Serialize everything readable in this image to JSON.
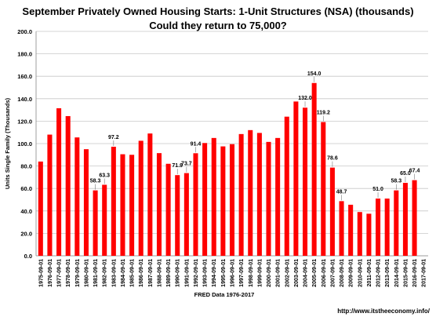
{
  "chart_data": {
    "type": "bar",
    "title": "September Privately Owned Housing Starts: 1-Unit Structures (NSA) (thousands)",
    "subtitle": "Could they return to 75,000?",
    "xlabel": "FRED  Data 1976-2017",
    "ylabel": "Units Single Family (Thousands)",
    "ylim": [
      0,
      200
    ],
    "yticks": [
      "0.0",
      "20.0",
      "40.0",
      "60.0",
      "80.0",
      "100.0",
      "120.0",
      "140.0",
      "160.0",
      "180.0",
      "200.0"
    ],
    "grid": true,
    "bar_color": "#ff0000",
    "categories": [
      "1975-09-01",
      "1976-09-01",
      "1977-09-01",
      "1978-09-01",
      "1979-09-01",
      "1980-09-01",
      "1981-09-01",
      "1982-09-01",
      "1983-09-01",
      "1984-09-01",
      "1985-09-01",
      "1986-09-01",
      "1987-09-01",
      "1988-09-01",
      "1989-09-01",
      "1990-09-01",
      "1991-09-01",
      "1992-09-01",
      "1993-09-01",
      "1994-09-01",
      "1995-09-01",
      "1996-09-01",
      "1997-09-01",
      "1998-09-01",
      "1999-09-01",
      "2000-09-01",
      "2001-09-01",
      "2002-09-01",
      "2003-09-01",
      "2004-09-01",
      "2005-09-01",
      "2006-09-01",
      "2007-09-01",
      "2008-09-01",
      "2009-09-01",
      "2010-09-01",
      "2011-09-01",
      "2012-09-01",
      "2013-09-01",
      "2014-09-01",
      "2015-09-01",
      "2016-09-01",
      "2017-09-01"
    ],
    "values": [
      84.0,
      108.0,
      131.5,
      124.5,
      105.5,
      95.0,
      58.3,
      63.3,
      97.2,
      90.5,
      90.0,
      102.5,
      109.0,
      91.5,
      82.0,
      71.9,
      73.7,
      91.4,
      100.5,
      105.0,
      97.5,
      99.5,
      108.5,
      112.0,
      109.5,
      101.5,
      105.0,
      124.0,
      137.5,
      132.0,
      154.0,
      119.2,
      78.6,
      48.7,
      45.5,
      39.0,
      37.5,
      51.0,
      51.0,
      58.3,
      65.0,
      67.4,
      null
    ],
    "data_labels": [
      {
        "index": 6,
        "text": "58.3"
      },
      {
        "index": 7,
        "text": "63.3"
      },
      {
        "index": 8,
        "text": "97.2"
      },
      {
        "index": 15,
        "text": "71.9"
      },
      {
        "index": 16,
        "text": "73.7"
      },
      {
        "index": 17,
        "text": "91.4"
      },
      {
        "index": 29,
        "text": "132.0"
      },
      {
        "index": 30,
        "text": "154.0"
      },
      {
        "index": 31,
        "text": "119.2"
      },
      {
        "index": 32,
        "text": "78.6"
      },
      {
        "index": 33,
        "text": "48.7"
      },
      {
        "index": 37,
        "text": "51.0"
      },
      {
        "index": 39,
        "text": "58.3"
      },
      {
        "index": 40,
        "text": "65.0"
      },
      {
        "index": 41,
        "text": "67.4"
      }
    ]
  },
  "footer": "http://www.itstheeconomy.info/"
}
